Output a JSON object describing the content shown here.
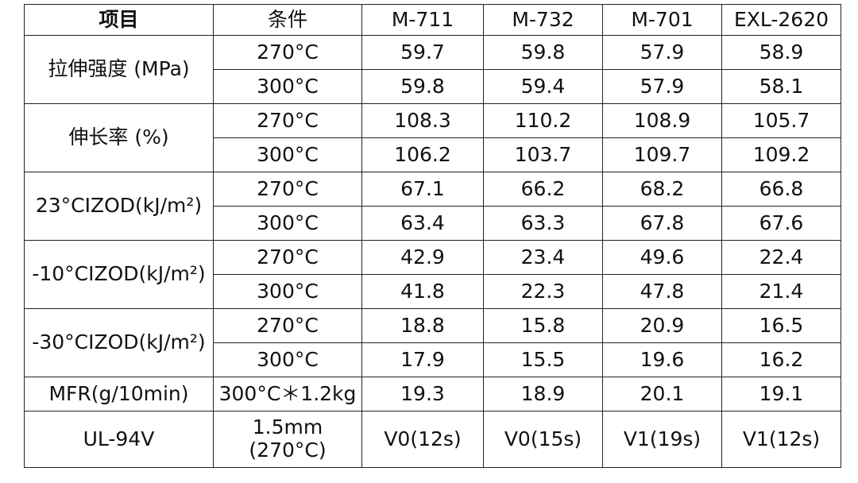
{
  "table": {
    "header": [
      "项目",
      "条件",
      "M-711",
      "M-732",
      "M-701",
      "EXL-2620"
    ],
    "groups": [
      {
        "label": "拉伸强度 (MPa)",
        "rows": [
          {
            "condition": "270°C",
            "values": [
              59.7,
              59.8,
              57.9,
              58.9
            ]
          },
          {
            "condition": "300°C",
            "values": [
              59.8,
              59.4,
              57.9,
              58.1
            ]
          }
        ]
      },
      {
        "label": "伸长率 (%)",
        "rows": [
          {
            "condition": "270°C",
            "values": [
              108.3,
              110.2,
              108.9,
              105.7
            ]
          },
          {
            "condition": "300°C",
            "values": [
              106.2,
              103.7,
              109.7,
              109.2
            ]
          }
        ]
      },
      {
        "label": "23°CIZOD(kJ/m²)",
        "rows": [
          {
            "condition": "270°C",
            "values": [
              67.1,
              66.2,
              68.2,
              66.8
            ]
          },
          {
            "condition": "300°C",
            "values": [
              63.4,
              63.3,
              67.8,
              67.6
            ]
          }
        ]
      },
      {
        "label": "-10°CIZOD(kJ/m²)",
        "rows": [
          {
            "condition": "270°C",
            "values": [
              42.9,
              23.4,
              49.6,
              22.4
            ]
          },
          {
            "condition": "300°C",
            "values": [
              41.8,
              22.3,
              47.8,
              21.4
            ]
          }
        ]
      },
      {
        "label": "-30°CIZOD(kJ/m²)",
        "rows": [
          {
            "condition": "270°C",
            "values": [
              18.8,
              15.8,
              20.9,
              16.5
            ]
          },
          {
            "condition": "300°C",
            "values": [
              17.9,
              15.5,
              19.6,
              16.2
            ]
          }
        ]
      },
      {
        "label": "MFR(g/10min)",
        "rows": [
          {
            "condition": "300°C＊1.2kg",
            "values": [
              19.3,
              18.9,
              20.1,
              19.1
            ]
          }
        ]
      },
      {
        "label": "UL-94V",
        "rows": [
          {
            "condition": "1.5mm (270°C)",
            "values": [
              "V0(12s)",
              "V0(15s)",
              "V1(19s)",
              "V1(12s)"
            ]
          }
        ]
      }
    ]
  }
}
